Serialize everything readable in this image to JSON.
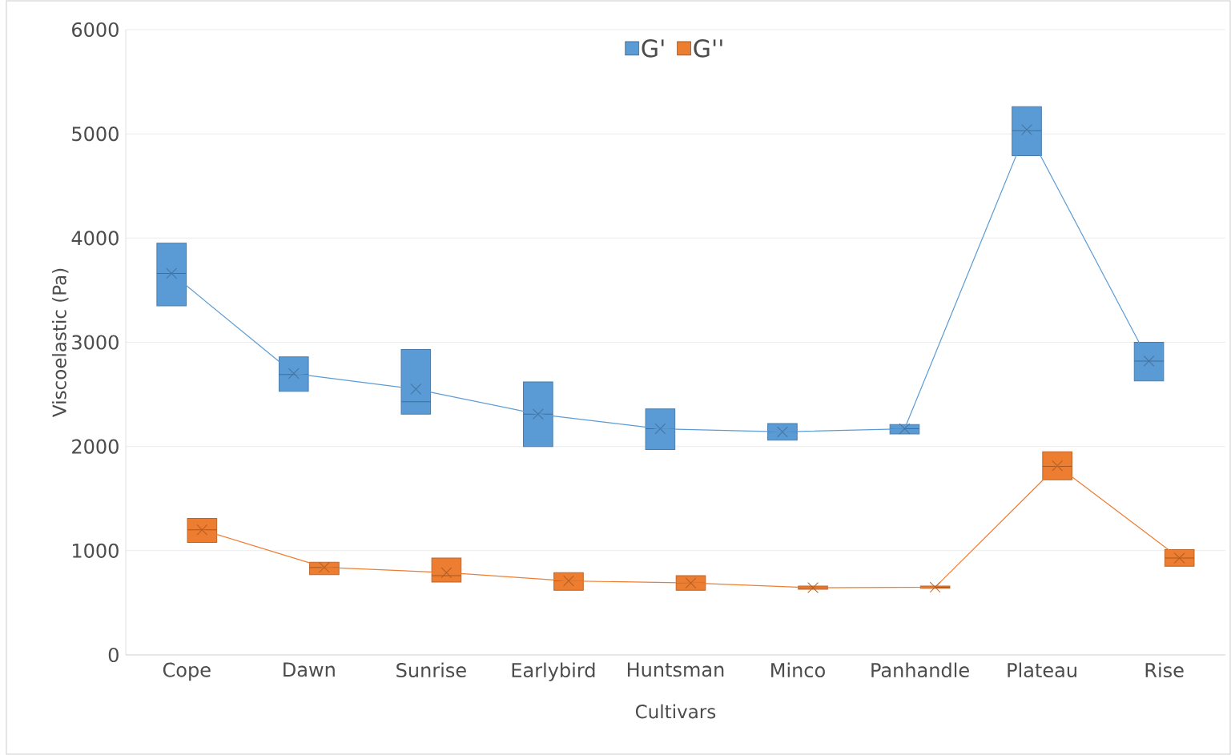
{
  "chart_data": {
    "type": "box",
    "xlabel": "Cultivars",
    "ylabel": "Viscoelastic (Pa)",
    "categories": [
      "Cope",
      "Dawn",
      "Sunrise",
      "Earlybird",
      "Huntsman",
      "Minco",
      "Panhandle",
      "Plateau",
      "Rise"
    ],
    "ylim": [
      0,
      6000
    ],
    "yticks": [
      0,
      1000,
      2000,
      3000,
      4000,
      5000,
      6000
    ],
    "grid": "y",
    "legend": "top",
    "series": [
      {
        "name": "G'",
        "color": "#5b9bd5",
        "boxes": [
          {
            "low": 3350,
            "q1": 3350,
            "median": 3660,
            "q3": 3950,
            "high": 3950
          },
          {
            "low": 2530,
            "q1": 2530,
            "median": 2690,
            "q3": 2860,
            "high": 2860
          },
          {
            "low": 2310,
            "q1": 2310,
            "median": 2430,
            "q3": 2930,
            "high": 2930
          },
          {
            "low": 2000,
            "q1": 2000,
            "median": 2310,
            "q3": 2620,
            "high": 2620
          },
          {
            "low": 1970,
            "q1": 1970,
            "median": 2170,
            "q3": 2360,
            "high": 2360
          },
          {
            "low": 2060,
            "q1": 2060,
            "median": 2140,
            "q3": 2220,
            "high": 2220
          },
          {
            "low": 2120,
            "q1": 2120,
            "median": 2170,
            "q3": 2210,
            "high": 2210
          },
          {
            "low": 4790,
            "q1": 4790,
            "median": 5030,
            "q3": 5260,
            "high": 5260
          },
          {
            "low": 2630,
            "q1": 2630,
            "median": 2820,
            "q3": 3000,
            "high": 3000
          }
        ]
      },
      {
        "name": "G''",
        "color": "#ed7d31",
        "boxes": [
          {
            "low": 1080,
            "q1": 1080,
            "median": 1200,
            "q3": 1310,
            "high": 1310
          },
          {
            "low": 770,
            "q1": 770,
            "median": 840,
            "q3": 890,
            "high": 890
          },
          {
            "low": 700,
            "q1": 700,
            "median": 760,
            "q3": 930,
            "high": 930
          },
          {
            "low": 620,
            "q1": 620,
            "median": 710,
            "q3": 790,
            "high": 790
          },
          {
            "low": 620,
            "q1": 620,
            "median": 690,
            "q3": 760,
            "high": 760
          },
          {
            "low": 630,
            "q1": 630,
            "median": 645,
            "q3": 660,
            "high": 660
          },
          {
            "low": 640,
            "q1": 640,
            "median": 650,
            "q3": 660,
            "high": 660
          },
          {
            "low": 1680,
            "q1": 1680,
            "median": 1810,
            "q3": 1950,
            "high": 1950
          },
          {
            "low": 850,
            "q1": 850,
            "median": 930,
            "q3": 1010,
            "high": 1010
          }
        ]
      },
      {
        "type": "line",
        "color": "#5b9bd5",
        "marker": "cross",
        "values": [
          3660,
          2700,
          2550,
          2310,
          2170,
          2140,
          2170,
          5040,
          2820
        ]
      },
      {
        "type": "line",
        "color": "#ed7d31",
        "marker": "cross",
        "values": [
          1200,
          840,
          790,
          710,
          690,
          645,
          650,
          1815,
          930
        ]
      }
    ]
  }
}
